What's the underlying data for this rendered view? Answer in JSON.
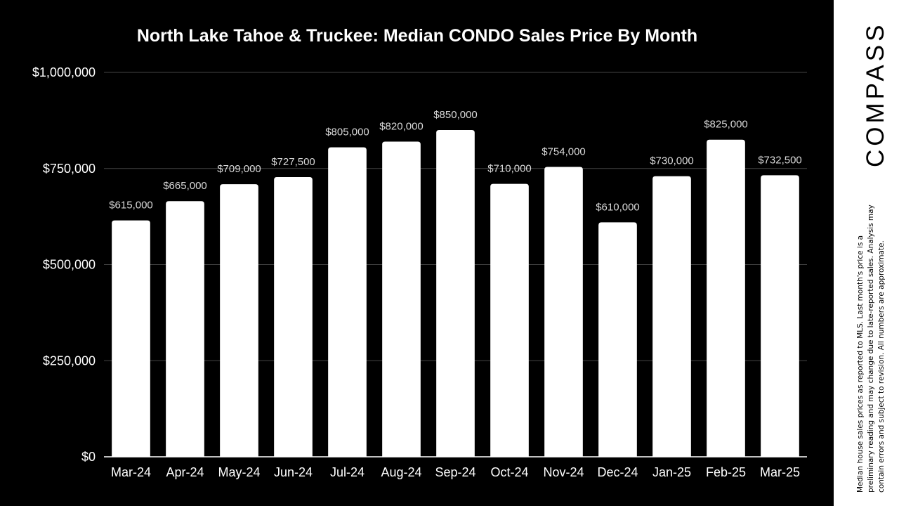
{
  "chart_data": {
    "type": "bar",
    "title": "North Lake Tahoe & Truckee: Median CONDO Sales Price By Month",
    "xlabel": "",
    "ylabel": "",
    "ylim": [
      0,
      1000000
    ],
    "grid": true,
    "categories": [
      "Mar-24",
      "Apr-24",
      "May-24",
      "Jun-24",
      "Jul-24",
      "Aug-24",
      "Sep-24",
      "Oct-24",
      "Nov-24",
      "Dec-24",
      "Jan-25",
      "Feb-25",
      "Mar-25"
    ],
    "values": [
      615000,
      665000,
      709000,
      727500,
      805000,
      820000,
      850000,
      710000,
      754000,
      610000,
      730000,
      825000,
      732500
    ],
    "value_labels": [
      "$615,000",
      "$665,000",
      "$709,000",
      "$727,500",
      "$805,000",
      "$820,000",
      "$850,000",
      "$710,000",
      "$754,000",
      "$610,000",
      "$730,000",
      "$825,000",
      "$732,500"
    ],
    "y_ticks": [
      0,
      250000,
      500000,
      750000,
      1000000
    ],
    "y_tick_labels": [
      "$0",
      "$250,000",
      "$500,000",
      "$750,000",
      "$1,000,000"
    ]
  },
  "colors": {
    "background": "#000000",
    "bar": "#ffffff",
    "grid": "#444444",
    "data_label": "#d9d9d9"
  },
  "brand": {
    "logo_text": "COMPASS"
  },
  "disclaimer": "Median house sales prices as reported to MLS. Last month's price is a preliminary reading and may change due to late-reported sales. Analysis may contain errors and subject to revision. All numbers are approximate."
}
